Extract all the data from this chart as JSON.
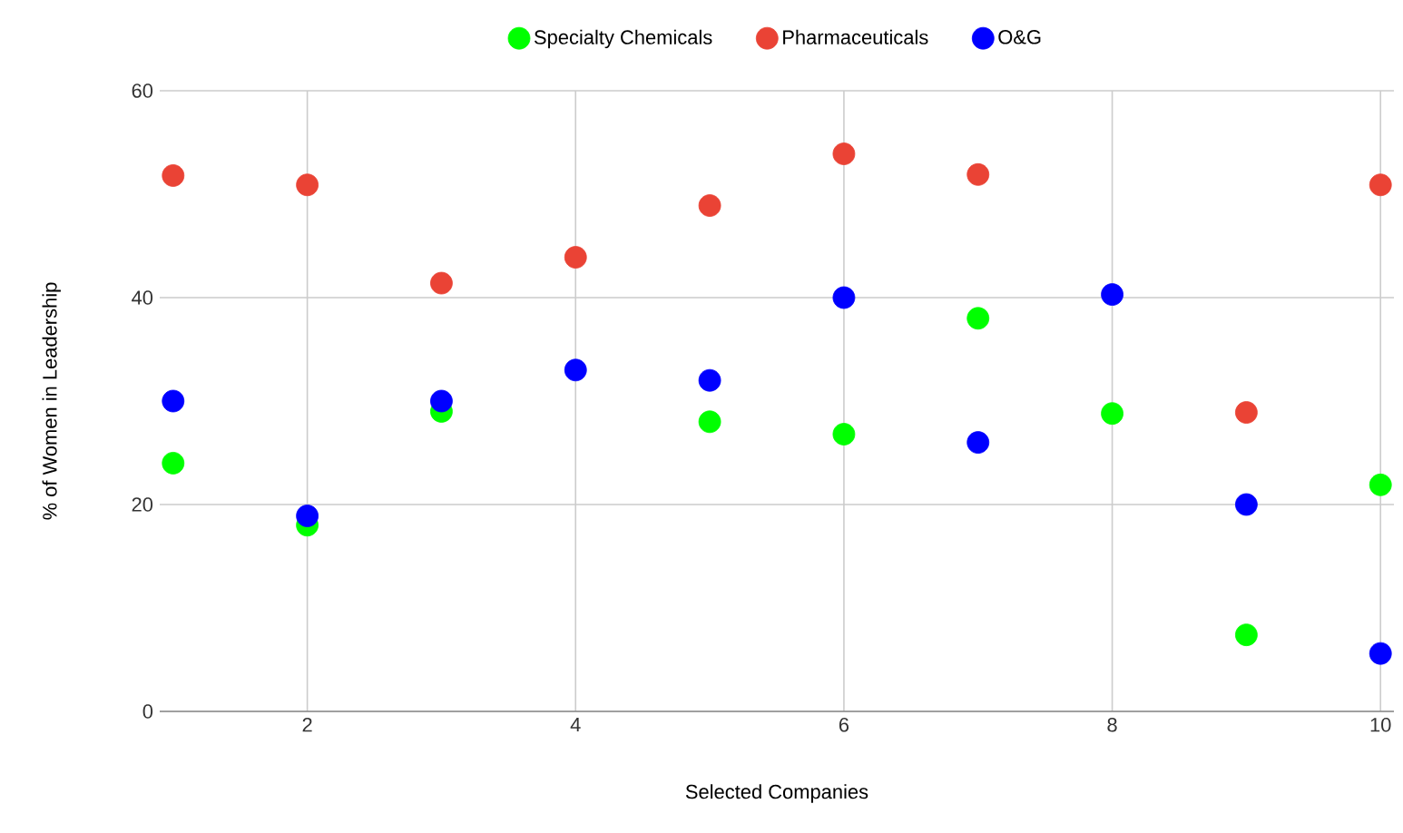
{
  "chart_data": {
    "type": "scatter",
    "xlabel": "Selected Companies",
    "ylabel": "% of Women in Leadership",
    "x": [
      1,
      2,
      3,
      4,
      5,
      6,
      7,
      8,
      9,
      10
    ],
    "series": [
      {
        "name": "Specialty Chemicals",
        "color": "#00ff00",
        "values": [
          24,
          18,
          29,
          null,
          28,
          26.8,
          38,
          28.8,
          7.4,
          21.9
        ]
      },
      {
        "name": "Pharmaceuticals",
        "color": "#ea4335",
        "values": [
          51.8,
          50.9,
          41.4,
          43.9,
          48.9,
          53.9,
          51.9,
          null,
          28.9,
          50.9
        ]
      },
      {
        "name": "O&G",
        "color": "#0000ff",
        "values": [
          30,
          18.9,
          30,
          33,
          32,
          40,
          26,
          40.3,
          20,
          5.6
        ]
      }
    ],
    "xlim": [
      0.9,
      10.1
    ],
    "ylim": [
      0,
      60
    ],
    "xticks": [
      2,
      4,
      6,
      8,
      10
    ],
    "yticks": [
      0,
      20,
      40,
      60
    ],
    "grid": true,
    "legend": "top",
    "marker": "circle"
  }
}
